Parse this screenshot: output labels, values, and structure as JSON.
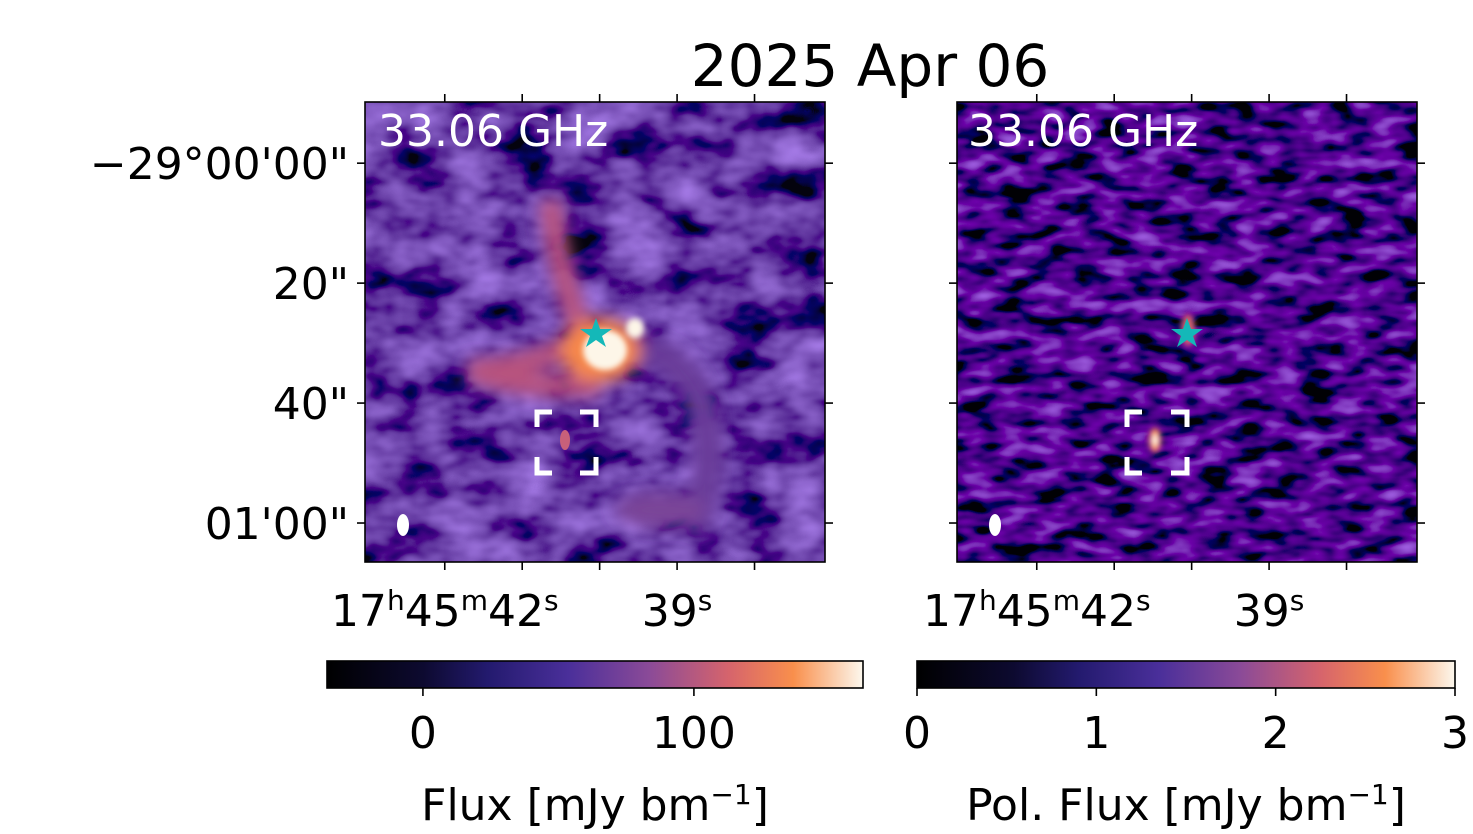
{
  "title": "2025 Apr 06",
  "panels": [
    {
      "label": "33.06 GHz",
      "xlim": [
        43.03,
        37.09
      ],
      "xticks": [
        {
          "value": 42,
          "label": [
            "17",
            "h",
            "45",
            "m",
            "42",
            "s"
          ]
        },
        {
          "value": 39,
          "label": [
            "39",
            "s"
          ]
        }
      ],
      "xminor": [
        41,
        40,
        38
      ],
      "ylim": [
        -10.2,
        66.5
      ],
      "yticks": [
        {
          "value": 0,
          "label": "−29°00'00\""
        },
        {
          "value": 20,
          "label": "20\""
        },
        {
          "value": 40,
          "label": "40\""
        },
        {
          "value": 60,
          "label": "01'00\""
        }
      ],
      "colorbar": {
        "label": [
          "Flux [mJy bm",
          "−1",
          "]"
        ],
        "lim": [
          -35.4,
          162.4
        ],
        "ticks": [
          0,
          100
        ]
      }
    },
    {
      "label": "33.06 GHz",
      "xlim": [
        43.03,
        37.09
      ],
      "xticks": [
        {
          "value": 42,
          "label": [
            "17",
            "h",
            "45",
            "m",
            "42",
            "s"
          ]
        },
        {
          "value": 39,
          "label": [
            "39",
            "s"
          ]
        }
      ],
      "xminor": [
        41,
        40,
        38
      ],
      "ylim": [
        -10.2,
        66.5
      ],
      "yminor": [
        0,
        20,
        40,
        60
      ],
      "colorbar": {
        "label": [
          "Pol. Flux [mJy bm",
          "−1",
          "]"
        ],
        "lim": [
          0,
          3
        ],
        "ticks": [
          0,
          1,
          2,
          3
        ]
      }
    }
  ]
}
